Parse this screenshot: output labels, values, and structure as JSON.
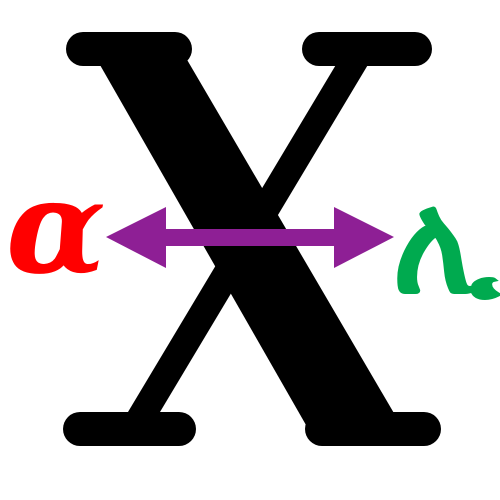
{
  "symbol": {
    "name": "X",
    "color": "#000000"
  },
  "left_glyph": {
    "text": "α",
    "color": "#ff0000"
  },
  "right_glyph": {
    "text": "ሊ",
    "color": "#00aa4f"
  },
  "arrow": {
    "type": "double-headed",
    "color": "#8e1f95"
  }
}
